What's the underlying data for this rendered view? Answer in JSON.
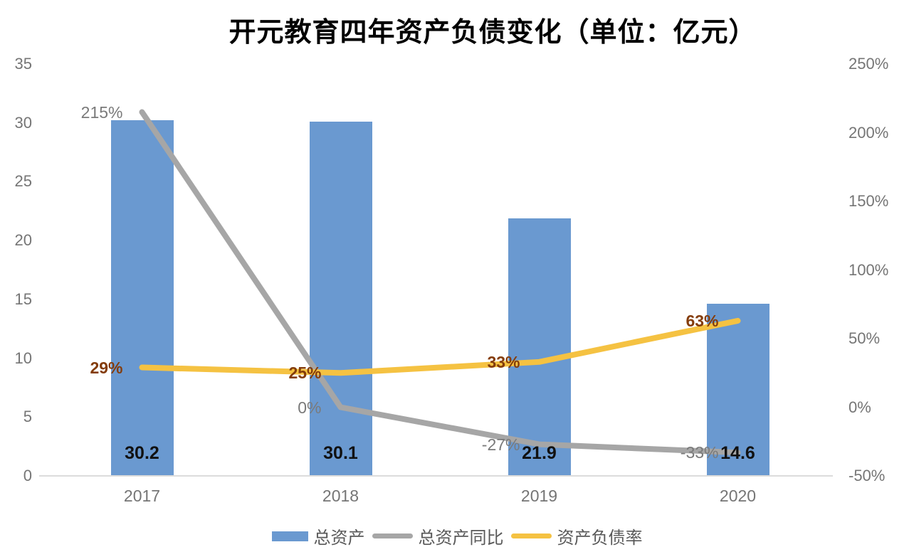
{
  "title": "开元教育四年资产负债变化（单位：亿元）",
  "chart_data": {
    "type": "bar",
    "subtype": "combo-bar-line-dual-axis",
    "title": "开元教育四年资产负债变化（单位：亿元）",
    "categories": [
      "2017",
      "2018",
      "2019",
      "2020"
    ],
    "series": [
      {
        "name": "总资产",
        "type": "bar",
        "axis": "left",
        "values": [
          30.2,
          30.1,
          21.9,
          14.6
        ],
        "labels": [
          "30.2",
          "30.1",
          "21.9",
          "14.6"
        ],
        "color": "#6A99D0"
      },
      {
        "name": "总资产同比",
        "type": "line",
        "axis": "right",
        "values": [
          215,
          0,
          -27,
          -33
        ],
        "labels": [
          "215%",
          "0%",
          "-27%",
          "-33%"
        ],
        "color": "#A6A6A6"
      },
      {
        "name": "资产负债率",
        "type": "line",
        "axis": "right",
        "values": [
          29,
          25,
          33,
          63
        ],
        "labels": [
          "29%",
          "25%",
          "33%",
          "63%"
        ],
        "color": "#F5C242"
      }
    ],
    "left_axis": {
      "min": 0,
      "max": 35,
      "step": 5,
      "ticks": [
        "0",
        "5",
        "10",
        "15",
        "20",
        "25",
        "30",
        "35"
      ]
    },
    "right_axis": {
      "min": -50,
      "max": 250,
      "step": 50,
      "ticks": [
        "-50%",
        "0%",
        "50%",
        "100%",
        "150%",
        "200%",
        "250%"
      ]
    },
    "legend": [
      "总资产",
      "总资产同比",
      "资产负债率"
    ],
    "legend_position": "bottom",
    "grid": false,
    "colors": {
      "bar": "#6A99D0",
      "line_gray": "#A6A6A6",
      "line_yellow": "#F5C242",
      "label_gray": "#7A7A7A",
      "label_brown": "#843C0B",
      "axis_line": "#DCDCDC",
      "tick_text": "#757575"
    }
  }
}
